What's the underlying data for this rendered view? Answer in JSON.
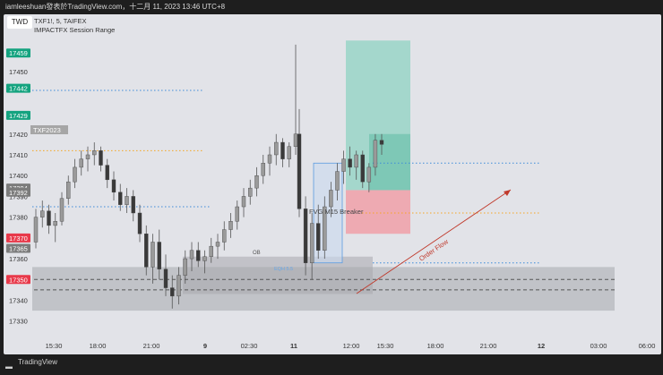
{
  "header": {
    "title": "iamleeshuan發表於TradingView.com，十二月 11, 2023 13:46 UTC+8"
  },
  "toolbar": {
    "currency_label": "TWD"
  },
  "legend": {
    "symbol_line": "TXF1!, 5, TAIFEX",
    "indicator_line": "IMPACTFX Session Range"
  },
  "annotations": {
    "symbol_tag": "TXF2023",
    "fvg_label": "FVG  M15 Breaker",
    "order_flow_label": "Order Flow",
    "ob_label": "OB",
    "small_label": "EQH 5.5"
  },
  "footer": {
    "brand": "TradingView"
  },
  "colors": {
    "up_candle": "#8a8a8a",
    "bg": "#e2e3e8",
    "profit": "#8fd3c3",
    "loss": "#f0a0a8",
    "green_tag": "#14a37f",
    "red_tag": "#e8394a",
    "gray_tag": "#7b7b7b",
    "blue_dots": "#3d8bd9",
    "orange_dots": "#f5a623",
    "arrow": "#c0392b"
  },
  "chart_data": {
    "type": "candlestick",
    "title": "TXF1!, 5, TAIFEX",
    "ylim": [
      17326,
      17469
    ],
    "y_ticks": [
      17330,
      17340,
      17350,
      17360,
      17370,
      17380,
      17390,
      17400,
      17410,
      17420,
      17430,
      17450
    ],
    "price_tags": [
      {
        "label": "17459",
        "value": 17459,
        "color": "green"
      },
      {
        "label": "17442",
        "value": 17442,
        "color": "green"
      },
      {
        "label": "17429",
        "value": 17429,
        "color": "green"
      },
      {
        "label": "17394",
        "value": 17394,
        "color": "gray"
      },
      {
        "label": "17392",
        "value": 17392,
        "color": "gray"
      },
      {
        "label": "17370",
        "value": 17370,
        "color": "red"
      },
      {
        "label": "17365",
        "value": 17365,
        "color": "gray"
      },
      {
        "label": "17350",
        "value": 17350,
        "color": "red"
      }
    ],
    "x_tick_labels": [
      "15:30",
      "18:00",
      "21:00",
      "9",
      "02:30",
      "11",
      "12:00",
      "15:30",
      "18:00",
      "21:00",
      "12",
      "03:00",
      "06:00"
    ],
    "price_levels": [
      {
        "value": 17441,
        "style": "blue-dotted"
      },
      {
        "value": 17412,
        "style": "orange-dotted"
      },
      {
        "value": 17406,
        "style": "blue-dotted"
      },
      {
        "value": 17385,
        "style": "blue-dotted"
      },
      {
        "value": 17382,
        "style": "orange-dotted"
      },
      {
        "value": 17358,
        "style": "blue-dotted"
      },
      {
        "value": 17350,
        "style": "dashed"
      },
      {
        "value": 17345,
        "style": "dashed"
      }
    ],
    "zones": [
      {
        "name": "session-range",
        "from": 17335,
        "to": 17356
      },
      {
        "name": "ob-box",
        "from": 17343,
        "to": 17361
      },
      {
        "name": "fvg-box",
        "from": 17358,
        "to": 17406
      },
      {
        "name": "profit-zone",
        "from": 17393,
        "to": 17465
      },
      {
        "name": "loss-zone",
        "from": 17372,
        "to": 17393
      }
    ],
    "candles": [
      [
        17368,
        17384,
        17365,
        17380
      ],
      [
        17380,
        17388,
        17375,
        17383
      ],
      [
        17383,
        17386,
        17372,
        17376
      ],
      [
        17376,
        17382,
        17368,
        17378
      ],
      [
        17378,
        17392,
        17376,
        17389
      ],
      [
        17389,
        17400,
        17386,
        17397
      ],
      [
        17397,
        17408,
        17394,
        17404
      ],
      [
        17404,
        17412,
        17400,
        17408
      ],
      [
        17408,
        17414,
        17402,
        17410
      ],
      [
        17410,
        17416,
        17405,
        17412
      ],
      [
        17412,
        17414,
        17402,
        17405
      ],
      [
        17405,
        17408,
        17394,
        17398
      ],
      [
        17398,
        17402,
        17388,
        17392
      ],
      [
        17392,
        17396,
        17383,
        17386
      ],
      [
        17386,
        17394,
        17382,
        17390
      ],
      [
        17390,
        17393,
        17378,
        17382
      ],
      [
        17382,
        17386,
        17368,
        17372
      ],
      [
        17372,
        17376,
        17352,
        17356
      ],
      [
        17356,
        17372,
        17348,
        17368
      ],
      [
        17368,
        17374,
        17350,
        17355
      ],
      [
        17355,
        17362,
        17342,
        17346
      ],
      [
        17346,
        17352,
        17336,
        17342
      ],
      [
        17342,
        17356,
        17338,
        17352
      ],
      [
        17352,
        17364,
        17348,
        17360
      ],
      [
        17360,
        17368,
        17354,
        17364
      ],
      [
        17364,
        17368,
        17356,
        17359
      ],
      [
        17359,
        17364,
        17353,
        17361
      ],
      [
        17361,
        17370,
        17358,
        17366
      ],
      [
        17366,
        17372,
        17360,
        17368
      ],
      [
        17368,
        17378,
        17364,
        17374
      ],
      [
        17374,
        17382,
        17370,
        17378
      ],
      [
        17378,
        17388,
        17374,
        17385
      ],
      [
        17385,
        17394,
        17380,
        17390
      ],
      [
        17390,
        17398,
        17386,
        17394
      ],
      [
        17394,
        17404,
        17390,
        17400
      ],
      [
        17400,
        17410,
        17396,
        17406
      ],
      [
        17406,
        17414,
        17400,
        17410
      ],
      [
        17410,
        17420,
        17405,
        17416
      ],
      [
        17416,
        17418,
        17404,
        17408
      ],
      [
        17408,
        17416,
        17404,
        17414
      ],
      [
        17414,
        17463,
        17410,
        17420
      ],
      [
        17420,
        17432,
        17380,
        17384
      ],
      [
        17384,
        17390,
        17352,
        17358
      ],
      [
        17358,
        17382,
        17350,
        17377
      ],
      [
        17377,
        17386,
        17360,
        17364
      ],
      [
        17364,
        17390,
        17360,
        17385
      ],
      [
        17385,
        17397,
        17380,
        17393
      ],
      [
        17393,
        17406,
        17388,
        17402
      ],
      [
        17402,
        17412,
        17396,
        17408
      ],
      [
        17408,
        17414,
        17400,
        17404
      ],
      [
        17404,
        17412,
        17398,
        17410
      ],
      [
        17410,
        17412,
        17394,
        17397
      ],
      [
        17397,
        17406,
        17392,
        17404
      ],
      [
        17404,
        17420,
        17400,
        17417
      ],
      [
        17417,
        17420,
        17410,
        17415
      ]
    ]
  }
}
